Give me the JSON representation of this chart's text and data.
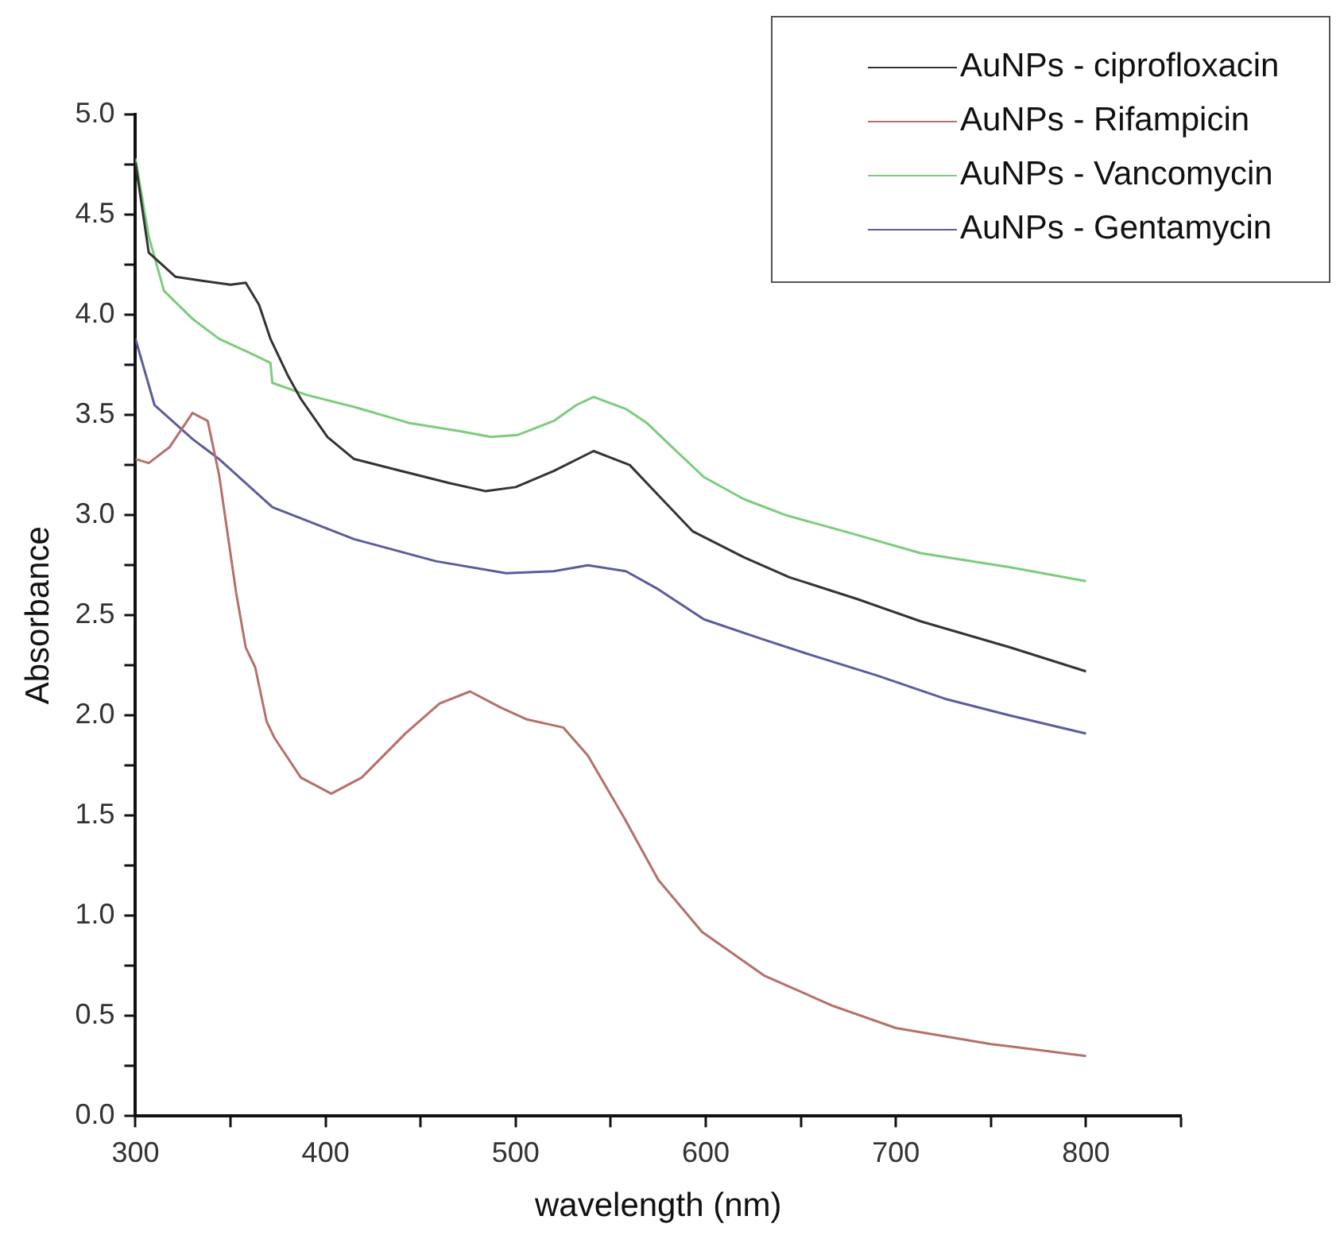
{
  "chart_data": {
    "type": "line",
    "xlabel": "wavelength (nm)",
    "ylabel": "Absorbance",
    "xlim": [
      300,
      850
    ],
    "ylim": [
      0,
      5
    ],
    "xticks": [
      300,
      {
        "value": 350,
        "label": null
      },
      400,
      {
        "value": 450,
        "label": null
      },
      500,
      {
        "value": 550,
        "label": null
      },
      600,
      {
        "value": 650,
        "label": null
      },
      700,
      {
        "value": 750,
        "label": null
      },
      800,
      {
        "value": 850,
        "label": null
      }
    ],
    "yticks": [
      {
        "value": 0,
        "label": "0.0"
      },
      {
        "value": 0.25,
        "label": null
      },
      {
        "value": 0.5,
        "label": "0.5"
      },
      {
        "value": 0.75,
        "label": null
      },
      {
        "value": 1,
        "label": "1.0"
      },
      {
        "value": 1.25,
        "label": null
      },
      {
        "value": 1.5,
        "label": "1.5"
      },
      {
        "value": 1.75,
        "label": null
      },
      {
        "value": 2,
        "label": "2.0"
      },
      {
        "value": 2.25,
        "label": null
      },
      {
        "value": 2.5,
        "label": "2.5"
      },
      {
        "value": 2.75,
        "label": null
      },
      {
        "value": 3,
        "label": "3.0"
      },
      {
        "value": 3.25,
        "label": null
      },
      {
        "value": 3.5,
        "label": "3.5"
      },
      {
        "value": 3.75,
        "label": null
      },
      {
        "value": 4,
        "label": "4.0"
      },
      {
        "value": 4.25,
        "label": null
      },
      {
        "value": 4.5,
        "label": "4.5"
      },
      {
        "value": 4.75,
        "label": null
      },
      {
        "value": 5,
        "label": "5.0"
      }
    ],
    "grid": false,
    "legend": "top right",
    "marker": "none",
    "line_style": "solid",
    "series": [
      {
        "name": "AuNPs - ciprofloxacin",
        "color": "#333333",
        "x": [
          300,
          307,
          321,
          335,
          350,
          358,
          365,
          371,
          380,
          387,
          401,
          415,
          440,
          465,
          484,
          500,
          520,
          541,
          560,
          575,
          593,
          620,
          644,
          680,
          713,
          760,
          800
        ],
        "values": [
          4.76,
          4.31,
          4.19,
          4.17,
          4.15,
          4.16,
          4.05,
          3.88,
          3.7,
          3.58,
          3.39,
          3.28,
          3.22,
          3.16,
          3.12,
          3.14,
          3.22,
          3.32,
          3.25,
          3.1,
          2.92,
          2.79,
          2.69,
          2.58,
          2.47,
          2.34,
          2.22
        ]
      },
      {
        "name": "AuNPs - Rifampicin",
        "color": "#b5706a",
        "x": [
          300,
          307,
          318,
          330,
          338,
          344,
          353,
          358,
          363,
          369,
          373,
          387,
          403,
          419,
          442,
          460,
          476,
          492,
          506,
          525,
          538,
          557,
          575,
          598,
          631,
          667,
          700,
          750,
          800
        ],
        "values": [
          3.28,
          3.26,
          3.34,
          3.51,
          3.47,
          3.2,
          2.61,
          2.34,
          2.24,
          1.97,
          1.89,
          1.69,
          1.61,
          1.69,
          1.91,
          2.06,
          2.12,
          2.04,
          1.98,
          1.94,
          1.8,
          1.49,
          1.18,
          0.92,
          0.7,
          0.55,
          0.44,
          0.36,
          0.3
        ]
      },
      {
        "name": "AuNPs - Vancomycin",
        "color": "#7ccc7c",
        "x": [
          300,
          307,
          315,
          330,
          344,
          360,
          371,
          372,
          390,
          415,
          444,
          470,
          487,
          501,
          520,
          532,
          541,
          558,
          569,
          580,
          599,
          620,
          642,
          680,
          713,
          760,
          800
        ],
        "values": [
          4.78,
          4.39,
          4.12,
          3.98,
          3.88,
          3.81,
          3.76,
          3.66,
          3.6,
          3.54,
          3.46,
          3.42,
          3.39,
          3.4,
          3.47,
          3.55,
          3.59,
          3.53,
          3.46,
          3.36,
          3.19,
          3.08,
          3.0,
          2.9,
          2.81,
          2.74,
          2.67
        ]
      },
      {
        "name": "AuNPs - Gentamycin",
        "color": "#5c5c9c",
        "x": [
          300,
          310,
          330,
          344,
          372,
          415,
          458,
          495,
          520,
          538,
          558,
          575,
          599,
          630,
          656,
          690,
          727,
          760,
          800
        ],
        "values": [
          3.88,
          3.55,
          3.38,
          3.28,
          3.04,
          2.88,
          2.77,
          2.71,
          2.72,
          2.75,
          2.72,
          2.63,
          2.48,
          2.38,
          2.3,
          2.2,
          2.08,
          2.0,
          1.91
        ]
      }
    ]
  }
}
